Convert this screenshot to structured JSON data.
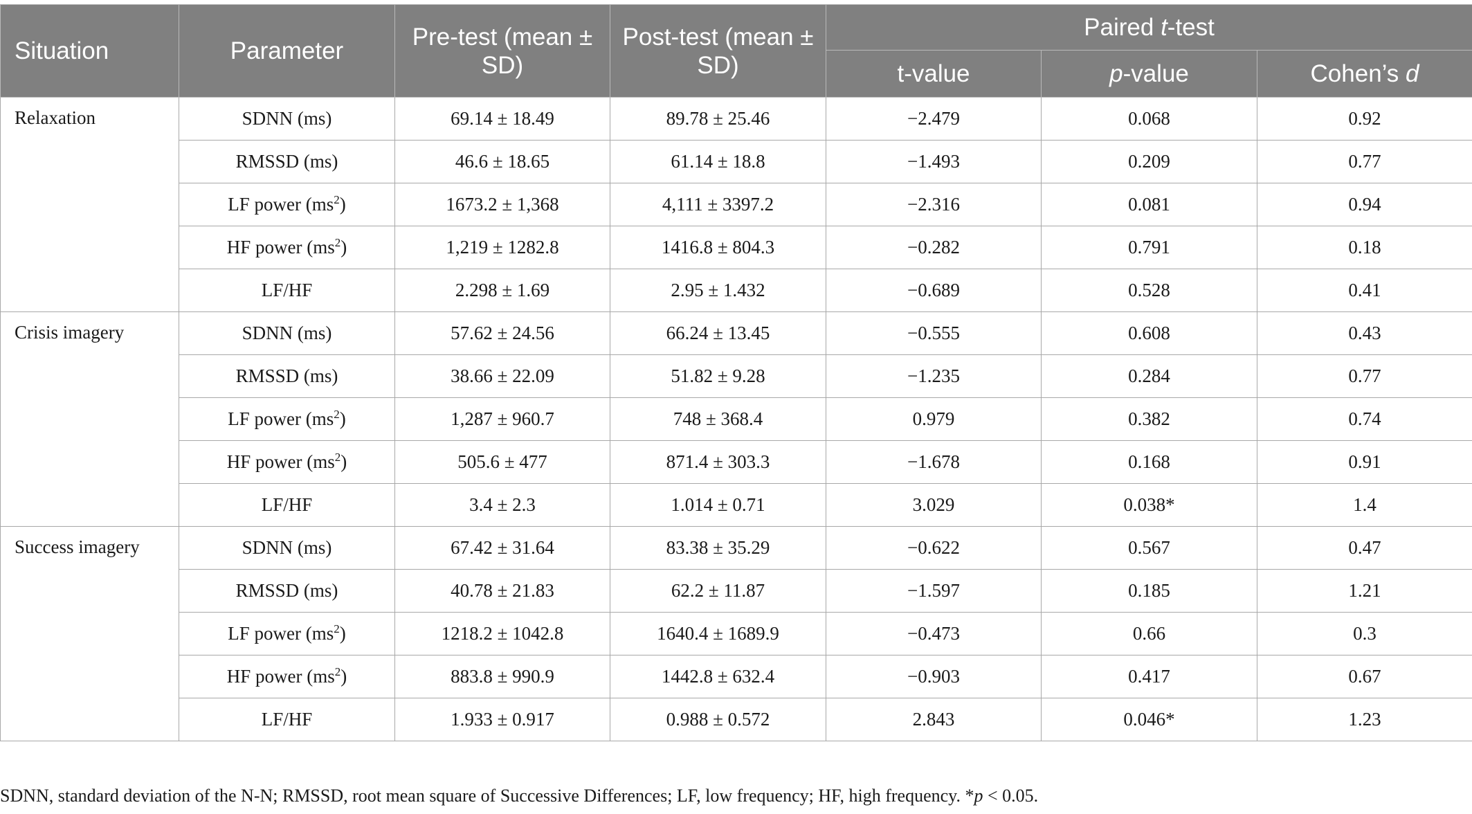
{
  "header": {
    "situation": "Situation",
    "parameter": "Parameter",
    "pretest": "Pre-test (mean ± SD)",
    "posttest": "Post-test (mean ± SD)",
    "paired_prefix": "Paired ",
    "paired_italic": "t",
    "paired_suffix": "-test",
    "tvalue": "t-value",
    "pvalue_italic": "p",
    "pvalue_suffix": "-value",
    "cohen_prefix": "Cohen’s ",
    "cohen_italic": "d"
  },
  "groups": [
    {
      "situation": "Relaxation",
      "rows": [
        {
          "param": "SDNN (ms)",
          "sup": "",
          "param_after": "",
          "pre": "69.14 ± 18.49",
          "post": "89.78 ± 25.46",
          "t": "−2.479",
          "p": "0.068",
          "d": "0.92"
        },
        {
          "param": "RMSSD (ms)",
          "sup": "",
          "param_after": "",
          "pre": "46.6 ± 18.65",
          "post": "61.14 ± 18.8",
          "t": "−1.493",
          "p": "0.209",
          "d": "0.77"
        },
        {
          "param": "LF power (ms",
          "sup": "2",
          "param_after": ")",
          "pre": "1673.2 ± 1,368",
          "post": "4,111 ± 3397.2",
          "t": "−2.316",
          "p": "0.081",
          "d": "0.94"
        },
        {
          "param": "HF power (ms",
          "sup": "2",
          "param_after": ")",
          "pre": "1,219 ± 1282.8",
          "post": "1416.8 ± 804.3",
          "t": "−0.282",
          "p": "0.791",
          "d": "0.18"
        },
        {
          "param": "LF/HF",
          "sup": "",
          "param_after": "",
          "pre": "2.298 ± 1.69",
          "post": "2.95 ± 1.432",
          "t": "−0.689",
          "p": "0.528",
          "d": "0.41"
        }
      ]
    },
    {
      "situation": "Crisis imagery",
      "rows": [
        {
          "param": "SDNN (ms)",
          "sup": "",
          "param_after": "",
          "pre": "57.62 ± 24.56",
          "post": "66.24 ± 13.45",
          "t": "−0.555",
          "p": "0.608",
          "d": "0.43"
        },
        {
          "param": "RMSSD (ms)",
          "sup": "",
          "param_after": "",
          "pre": "38.66 ± 22.09",
          "post": "51.82 ± 9.28",
          "t": "−1.235",
          "p": "0.284",
          "d": "0.77"
        },
        {
          "param": "LF power (ms",
          "sup": "2",
          "param_after": ")",
          "pre": "1,287 ± 960.7",
          "post": "748 ± 368.4",
          "t": "0.979",
          "p": "0.382",
          "d": "0.74"
        },
        {
          "param": "HF power (ms",
          "sup": "2",
          "param_after": ")",
          "pre": "505.6 ± 477",
          "post": "871.4 ± 303.3",
          "t": "−1.678",
          "p": "0.168",
          "d": "0.91"
        },
        {
          "param": "LF/HF",
          "sup": "",
          "param_after": "",
          "pre": "3.4 ± 2.3",
          "post": "1.014 ± 0.71",
          "t": "3.029",
          "p": "0.038*",
          "d": "1.4"
        }
      ]
    },
    {
      "situation": "Success imagery",
      "rows": [
        {
          "param": "SDNN (ms)",
          "sup": "",
          "param_after": "",
          "pre": "67.42 ± 31.64",
          "post": "83.38 ± 35.29",
          "t": "−0.622",
          "p": "0.567",
          "d": "0.47"
        },
        {
          "param": "RMSSD (ms)",
          "sup": "",
          "param_after": "",
          "pre": "40.78 ± 21.83",
          "post": "62.2 ± 11.87",
          "t": "−1.597",
          "p": "0.185",
          "d": "1.21"
        },
        {
          "param": "LF power (ms",
          "sup": "2",
          "param_after": ")",
          "pre": "1218.2 ± 1042.8",
          "post": "1640.4 ± 1689.9",
          "t": "−0.473",
          "p": "0.66",
          "d": "0.3"
        },
        {
          "param": "HF power (ms",
          "sup": "2",
          "param_after": ")",
          "pre": "883.8 ± 990.9",
          "post": "1442.8 ± 632.4",
          "t": "−0.903",
          "p": "0.417",
          "d": "0.67"
        },
        {
          "param": "LF/HF",
          "sup": "",
          "param_after": "",
          "pre": "1.933 ± 0.917",
          "post": "0.988 ± 0.572",
          "t": "2.843",
          "p": "0.046*",
          "d": "1.23"
        }
      ]
    }
  ],
  "footnote": {
    "text": "SDNN, standard deviation of the N-N; RMSSD, root mean square of Successive Differences; LF, low frequency; HF, high frequency. *",
    "italic": "p",
    "suffix": " < 0.05."
  }
}
